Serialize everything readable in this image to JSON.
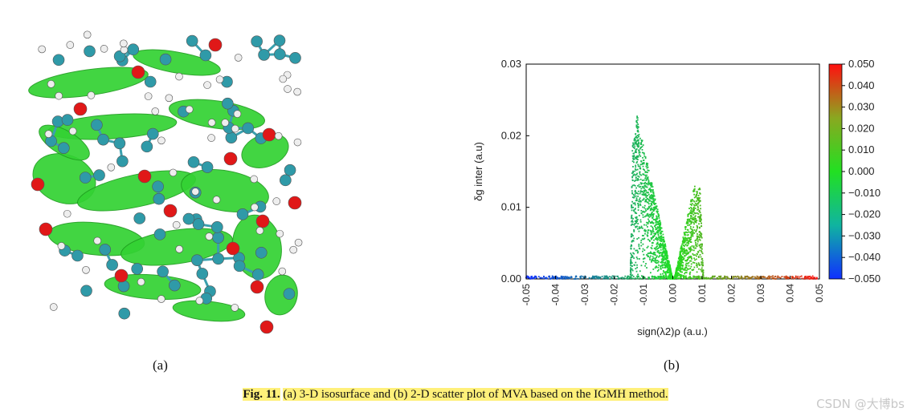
{
  "figure": {
    "panel_a_label": "(a)",
    "panel_b_label": "(b)",
    "caption_label": "Fig. 11.",
    "caption_text": "(a) 3-D isosurface and (b) 2-D scatter plot of MVA based on the IGMH method."
  },
  "watermark": "CSDN @大博bs",
  "colors": {
    "caption_highlight": "#fff07a",
    "isosurface_green": "#33d233",
    "carbon": "#2f9aa8",
    "oxygen": "#e01818",
    "hydrogen": "#eeeeee"
  },
  "chart_data": {
    "type": "scatter",
    "xlabel": "sign(λ2)ρ (a.u.)",
    "ylabel": "δg inter (a.u)",
    "xlim": [
      -0.05,
      0.05
    ],
    "ylim": [
      0,
      0.03
    ],
    "x_ticks": [
      "-0.05",
      "-0.04",
      "-0.03",
      "-0.02",
      "-0.01",
      "0.00",
      "0.01",
      "0.02",
      "0.03",
      "0.04",
      "0.05"
    ],
    "y_ticks": [
      "0.00",
      "0.01",
      "0.02",
      "0.03"
    ],
    "colorbar": {
      "range": [
        -0.05,
        0.05
      ],
      "ticks": [
        "0.050",
        "0.040",
        "0.030",
        "0.020",
        "0.010",
        "0.000",
        "−0.010",
        "−0.020",
        "−0.030",
        "−0.040",
        "−0.050"
      ]
    },
    "spikes": [
      {
        "name": "left spike",
        "x_range": [
          -0.0145,
          0.0
        ],
        "peak_x": -0.0125,
        "peak_y": 0.0235
      },
      {
        "name": "right spike",
        "x_range": [
          0.0005,
          0.0105
        ],
        "peak_x": 0.0075,
        "peak_y": 0.0135
      }
    ],
    "baseline_y": 0.0003
  }
}
